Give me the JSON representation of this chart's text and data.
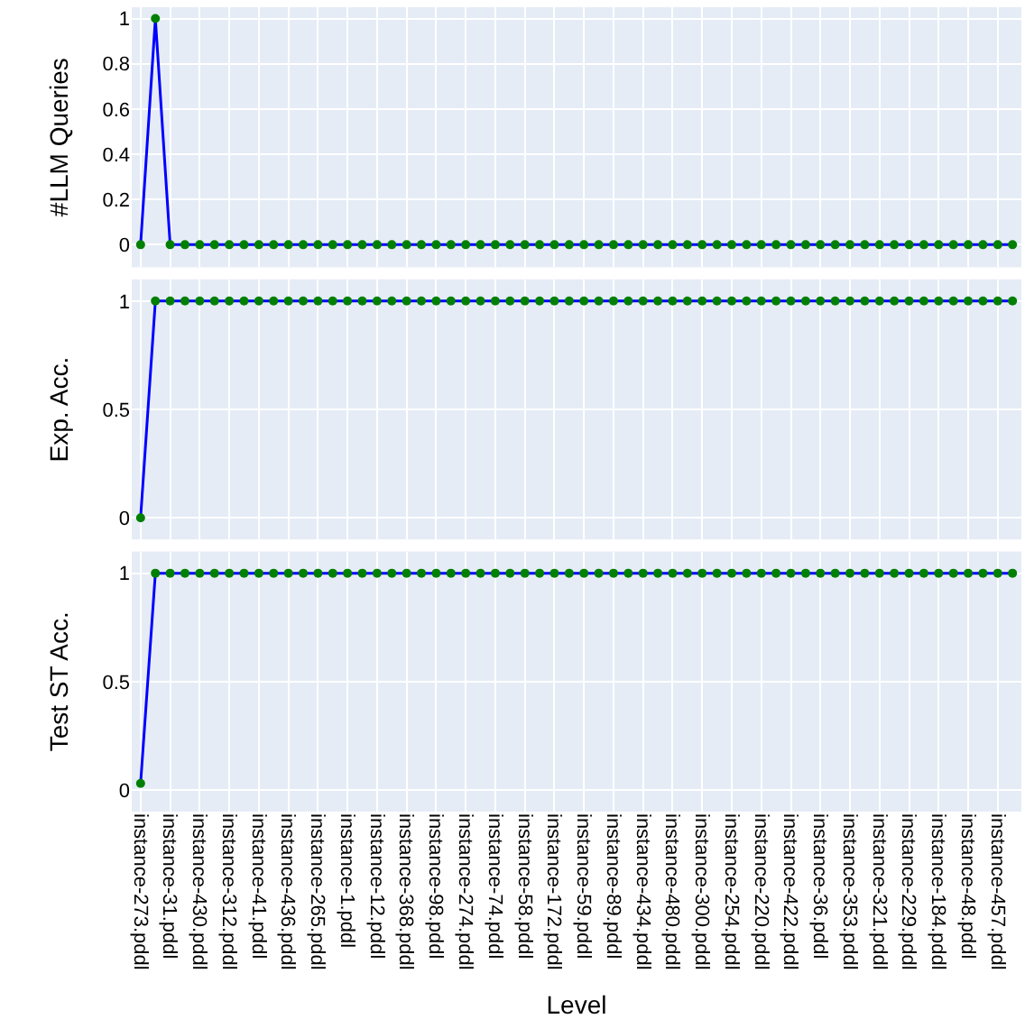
{
  "chart_data": [
    {
      "type": "line",
      "ylabel": "#LLM Queries",
      "marker": "circle",
      "grid": true,
      "tick_labels": "y",
      "categories": [
        "instance-273.pddl",
        null,
        "instance-31.pddl",
        null,
        "instance-430.pddl",
        null,
        "instance-312.pddl",
        null,
        "instance-41.pddl",
        null,
        "instance-436.pddl",
        null,
        "instance-265.pddl",
        null,
        "instance-1.pddl",
        null,
        "instance-12.pddl",
        null,
        "instance-368.pddl",
        null,
        "instance-98.pddl",
        null,
        "instance-274.pddl",
        null,
        "instance-74.pddl",
        null,
        "instance-58.pddl",
        null,
        "instance-172.pddl",
        null,
        "instance-59.pddl",
        null,
        "instance-89.pddl",
        null,
        "instance-434.pddl",
        null,
        "instance-480.pddl",
        null,
        "instance-300.pddl",
        null,
        "instance-254.pddl",
        null,
        "instance-220.pddl",
        null,
        "instance-422.pddl",
        null,
        "instance-36.pddl",
        null,
        "instance-353.pddl",
        null,
        "instance-321.pddl",
        null,
        "instance-229.pddl",
        null,
        "instance-184.pddl",
        null,
        "instance-48.pddl",
        null,
        "instance-457.pddl",
        null
      ],
      "ylim": [
        -0.1,
        1.05
      ],
      "yticks": [
        0,
        0.2,
        0.4,
        0.6,
        0.8,
        1
      ],
      "series": [
        {
          "color": "#0000ff",
          "values": [
            0,
            1,
            0,
            0,
            0,
            0,
            0,
            0,
            0,
            0,
            0,
            0,
            0,
            0,
            0,
            0,
            0,
            0,
            0,
            0,
            0,
            0,
            0,
            0,
            0,
            0,
            0,
            0,
            0,
            0,
            0,
            0,
            0,
            0,
            0,
            0,
            0,
            0,
            0,
            0,
            0,
            0,
            0,
            0,
            0,
            0,
            0,
            0,
            0,
            0,
            0,
            0,
            0,
            0,
            0,
            0,
            0,
            0,
            0,
            0
          ]
        }
      ]
    },
    {
      "type": "line",
      "ylabel": "Exp. Acc.",
      "marker": "circle",
      "grid": true,
      "tick_labels": "y",
      "categories": [
        "instance-273.pddl",
        null,
        "instance-31.pddl",
        null,
        "instance-430.pddl",
        null,
        "instance-312.pddl",
        null,
        "instance-41.pddl",
        null,
        "instance-436.pddl",
        null,
        "instance-265.pddl",
        null,
        "instance-1.pddl",
        null,
        "instance-12.pddl",
        null,
        "instance-368.pddl",
        null,
        "instance-98.pddl",
        null,
        "instance-274.pddl",
        null,
        "instance-74.pddl",
        null,
        "instance-58.pddl",
        null,
        "instance-172.pddl",
        null,
        "instance-59.pddl",
        null,
        "instance-89.pddl",
        null,
        "instance-434.pddl",
        null,
        "instance-480.pddl",
        null,
        "instance-300.pddl",
        null,
        "instance-254.pddl",
        null,
        "instance-220.pddl",
        null,
        "instance-422.pddl",
        null,
        "instance-36.pddl",
        null,
        "instance-353.pddl",
        null,
        "instance-321.pddl",
        null,
        "instance-229.pddl",
        null,
        "instance-184.pddl",
        null,
        "instance-48.pddl",
        null,
        "instance-457.pddl",
        null
      ],
      "ylim": [
        -0.1,
        1.1
      ],
      "yticks": [
        0,
        0.5,
        1
      ],
      "series": [
        {
          "color": "#0000ff",
          "values": [
            0,
            1,
            1,
            1,
            1,
            1,
            1,
            1,
            1,
            1,
            1,
            1,
            1,
            1,
            1,
            1,
            1,
            1,
            1,
            1,
            1,
            1,
            1,
            1,
            1,
            1,
            1,
            1,
            1,
            1,
            1,
            1,
            1,
            1,
            1,
            1,
            1,
            1,
            1,
            1,
            1,
            1,
            1,
            1,
            1,
            1,
            1,
            1,
            1,
            1,
            1,
            1,
            1,
            1,
            1,
            1,
            1,
            1,
            1,
            1
          ]
        }
      ]
    },
    {
      "type": "line",
      "xlabel": "Level",
      "ylabel": "Test ST Acc.",
      "marker": "circle",
      "grid": true,
      "categories": [
        "instance-273.pddl",
        null,
        "instance-31.pddl",
        null,
        "instance-430.pddl",
        null,
        "instance-312.pddl",
        null,
        "instance-41.pddl",
        null,
        "instance-436.pddl",
        null,
        "instance-265.pddl",
        null,
        "instance-1.pddl",
        null,
        "instance-12.pddl",
        null,
        "instance-368.pddl",
        null,
        "instance-98.pddl",
        null,
        "instance-274.pddl",
        null,
        "instance-74.pddl",
        null,
        "instance-58.pddl",
        null,
        "instance-172.pddl",
        null,
        "instance-59.pddl",
        null,
        "instance-89.pddl",
        null,
        "instance-434.pddl",
        null,
        "instance-480.pddl",
        null,
        "instance-300.pddl",
        null,
        "instance-254.pddl",
        null,
        "instance-220.pddl",
        null,
        "instance-422.pddl",
        null,
        "instance-36.pddl",
        null,
        "instance-353.pddl",
        null,
        "instance-321.pddl",
        null,
        "instance-229.pddl",
        null,
        "instance-184.pddl",
        null,
        "instance-48.pddl",
        null,
        "instance-457.pddl",
        null
      ],
      "ylim": [
        -0.1,
        1.1
      ],
      "yticks": [
        0,
        0.5,
        1
      ],
      "series": [
        {
          "color": "#0000ff",
          "values": [
            0.03,
            1,
            1,
            1,
            1,
            1,
            1,
            1,
            1,
            1,
            1,
            1,
            1,
            1,
            1,
            1,
            1,
            1,
            1,
            1,
            1,
            1,
            1,
            1,
            1,
            1,
            1,
            1,
            1,
            1,
            1,
            1,
            1,
            1,
            1,
            1,
            1,
            1,
            1,
            1,
            1,
            1,
            1,
            1,
            1,
            1,
            1,
            1,
            1,
            1,
            1,
            1,
            1,
            1,
            1,
            1,
            1,
            1,
            1,
            1
          ]
        }
      ]
    }
  ]
}
